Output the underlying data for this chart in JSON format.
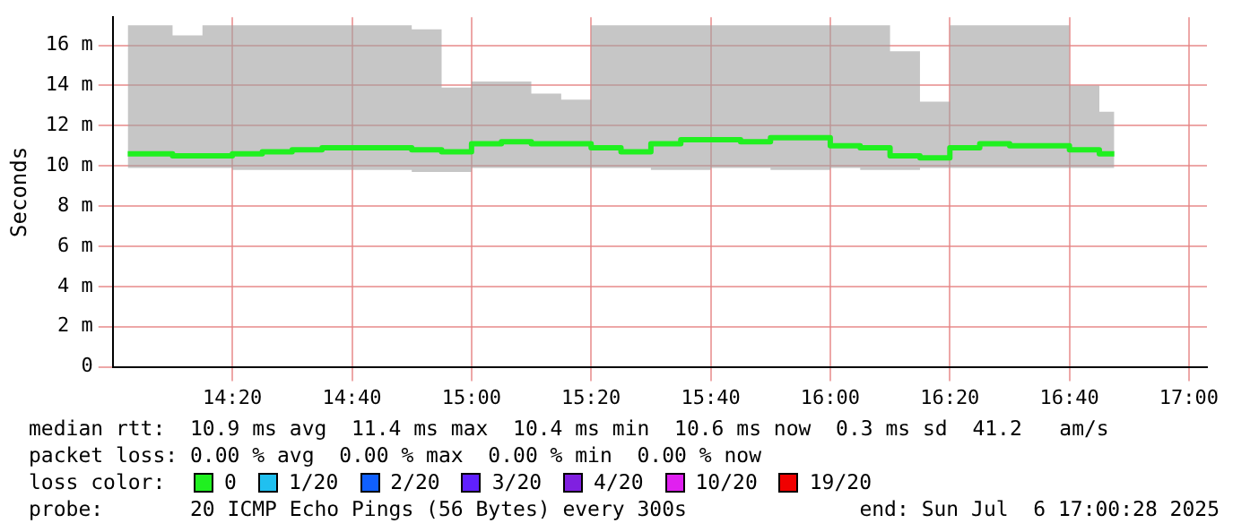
{
  "chart_data": {
    "type": "step",
    "ylabel": "Seconds",
    "x": [
      14.0417,
      14.125,
      14.2083,
      14.2917,
      14.375,
      14.4583,
      14.5417,
      14.625,
      14.7083,
      14.7917,
      14.875,
      14.9583,
      15.0417,
      15.125,
      15.2083,
      15.2917,
      15.375,
      15.4583,
      15.5417,
      15.625,
      15.7083,
      15.7917,
      15.875,
      15.9583,
      16.0417,
      16.125,
      16.2083,
      16.2917,
      16.375,
      16.4583,
      16.5417,
      16.625,
      16.7083,
      16.7917
    ],
    "series": [
      {
        "color": "#20f020",
        "values": [
          10.6,
          10.6,
          10.5,
          10.5,
          10.6,
          10.7,
          10.8,
          10.9,
          10.9,
          10.9,
          10.8,
          10.7,
          11.1,
          11.2,
          11.1,
          11.1,
          10.9,
          10.7,
          11.1,
          11.3,
          11.3,
          11.2,
          11.4,
          11.4,
          11.0,
          10.9,
          10.5,
          10.4,
          10.9,
          11.1,
          11.0,
          11.0,
          10.8,
          10.6
        ],
        "lower": [
          9.9,
          9.9,
          9.9,
          9.9,
          9.8,
          9.8,
          9.8,
          9.8,
          9.8,
          9.8,
          9.7,
          9.7,
          9.9,
          9.9,
          9.9,
          9.9,
          9.9,
          9.9,
          9.8,
          9.8,
          9.9,
          9.9,
          9.8,
          9.8,
          9.9,
          9.8,
          9.8,
          9.9,
          9.9,
          9.9,
          9.9,
          9.9,
          9.9,
          9.9
        ],
        "upper": [
          17.0,
          17.0,
          16.5,
          17.0,
          17.0,
          17.0,
          17.0,
          17.0,
          17.0,
          17.0,
          16.8,
          13.9,
          14.2,
          14.2,
          13.6,
          13.3,
          17.0,
          17.0,
          17.0,
          17.0,
          17.0,
          17.0,
          17.0,
          17.0,
          17.0,
          17.0,
          15.7,
          13.2,
          17.0,
          17.0,
          17.0,
          17.0,
          14.0,
          12.7
        ]
      }
    ],
    "xlim": [
      14,
      17.05
    ],
    "xticks": [
      {
        "value": 14.3333,
        "label": "14:20"
      },
      {
        "value": 14.6667,
        "label": "14:40"
      },
      {
        "value": 15,
        "label": "15:00"
      },
      {
        "value": 15.3333,
        "label": "15:20"
      },
      {
        "value": 15.6667,
        "label": "15:40"
      },
      {
        "value": 16,
        "label": "16:00"
      },
      {
        "value": 16.3333,
        "label": "16:20"
      },
      {
        "value": 16.6667,
        "label": "16:40"
      },
      {
        "value": 17,
        "label": "17:00"
      }
    ],
    "ylim": [
      0,
      17.4
    ],
    "yticks": [
      0,
      {
        "value": 2,
        "label": "2 m"
      },
      {
        "value": 4,
        "label": "4 m"
      },
      {
        "value": 6,
        "label": "6 m"
      },
      {
        "value": 8,
        "label": "8 m"
      },
      {
        "value": 10,
        "label": "10 m"
      },
      {
        "value": 12,
        "label": "12 m"
      },
      {
        "value": 14,
        "label": "14 m"
      },
      {
        "value": 16,
        "label": "16 m"
      }
    ],
    "grid": true,
    "annotations": [
      "median rtt:  10.9 ms avg  11.4 ms max  10.4 ms min  10.6 ms now  0.3 ms sd  41.2   am/s",
      "packet loss: 0.00 % avg  0.00 % max  0.00 % min  0.00 % now",
      "loss color:",
      "0",
      "1/20",
      "2/20",
      "3/20",
      "4/20",
      "10/20",
      "19/20",
      "probe:       20 ICMP Echo Pings (56 Bytes) every 300s",
      "end: Sun Jul  6 17:00:28 2025"
    ]
  }
}
